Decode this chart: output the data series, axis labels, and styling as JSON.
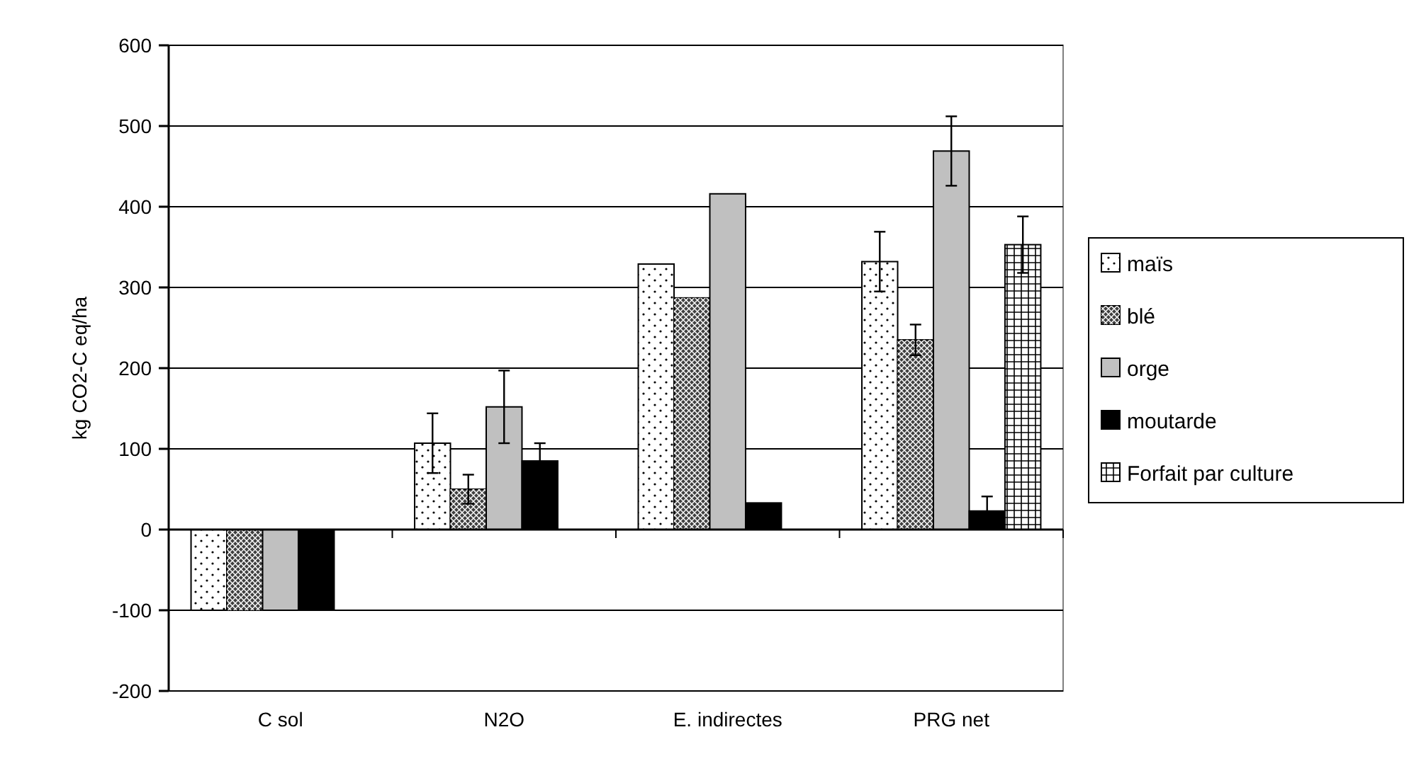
{
  "chart_data": {
    "type": "bar",
    "ylabel": "kg CO2-C eq/ha",
    "categories": [
      "C sol",
      "N2O",
      "E. indirectes",
      "PRG net"
    ],
    "series": [
      {
        "name": "maïs",
        "color": "#ffffff",
        "values": [
          -100,
          107,
          329,
          332
        ],
        "errors": [
          null,
          37,
          null,
          37
        ]
      },
      {
        "name": "blé",
        "color": "#404040",
        "values": [
          -100,
          50,
          287,
          235
        ],
        "errors": [
          null,
          18,
          null,
          19
        ]
      },
      {
        "name": "orge",
        "color": "#c0c0c0",
        "values": [
          -100,
          152,
          416,
          469
        ],
        "errors": [
          null,
          45,
          null,
          43
        ]
      },
      {
        "name": "moutarde",
        "color": "#000000",
        "values": [
          -100,
          85,
          33,
          23
        ],
        "errors": [
          null,
          22,
          null,
          18
        ]
      },
      {
        "name": "Forfait par culture",
        "color": "#ffffff",
        "values": [
          null,
          null,
          null,
          353
        ],
        "errors": [
          null,
          null,
          null,
          35
        ]
      }
    ],
    "ylim": [
      -200,
      600
    ],
    "yticks": [
      -200,
      -100,
      0,
      100,
      200,
      300,
      400,
      500,
      600
    ],
    "grid": "y",
    "legend": "right"
  }
}
